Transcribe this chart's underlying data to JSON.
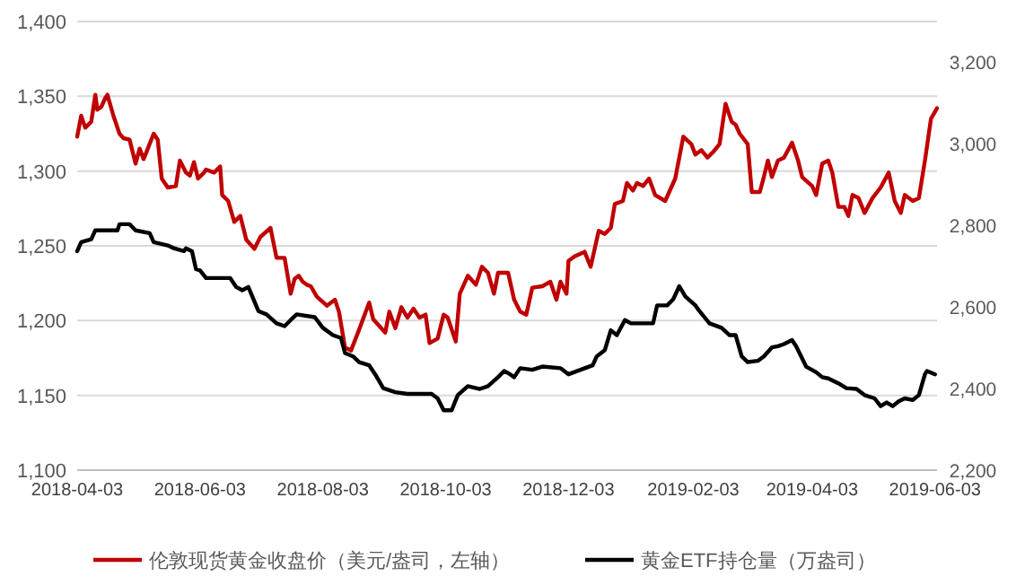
{
  "chart_data": {
    "type": "line",
    "grid": "y",
    "legend": "bottom",
    "marker": "none",
    "line_style": "solid",
    "xlim": [
      "2018-04-03",
      "2019-06-04"
    ],
    "xticks": [
      "2018-04-03",
      "2018-06-03",
      "2018-08-03",
      "2018-10-03",
      "2018-12-03",
      "2019-02-03",
      "2019-04-03",
      "2019-06-03"
    ],
    "ylim": [
      1100,
      1400
    ],
    "yticks": [
      {
        "value": 1100,
        "label": "1,100"
      },
      {
        "value": 1150,
        "label": "1,150"
      },
      {
        "value": 1200,
        "label": "1,200"
      },
      {
        "value": 1250,
        "label": "1,250"
      },
      {
        "value": 1300,
        "label": "1,300"
      },
      {
        "value": 1350,
        "label": "1,350"
      },
      {
        "value": 1400,
        "label": "1,400"
      }
    ],
    "y2lim": [
      2200,
      3300
    ],
    "y2ticks": [
      {
        "value": 2200,
        "label": "2,200"
      },
      {
        "value": 2400,
        "label": "2,400"
      },
      {
        "value": 2600,
        "label": "2,600"
      },
      {
        "value": 2800,
        "label": "2,800"
      },
      {
        "value": 3000,
        "label": "3,000"
      },
      {
        "value": 3200,
        "label": "3,200"
      }
    ],
    "series": [
      {
        "name": "伦敦现货黄金收盘价（美元/盎司，左轴）",
        "color": "#c00000",
        "x": [
          "2018-04-03",
          "2018-04-05",
          "2018-04-07",
          "2018-04-10",
          "2018-04-12",
          "2018-04-13",
          "2018-04-15",
          "2018-04-17",
          "2018-04-18",
          "2018-04-21",
          "2018-04-24",
          "2018-04-26",
          "2018-04-29",
          "2018-05-02",
          "2018-05-04",
          "2018-05-06",
          "2018-05-11",
          "2018-05-13",
          "2018-05-15",
          "2018-05-18",
          "2018-05-22",
          "2018-05-24",
          "2018-05-27",
          "2018-05-29",
          "2018-05-31",
          "2018-06-02",
          "2018-06-05",
          "2018-06-06",
          "2018-06-10",
          "2018-06-13",
          "2018-06-14",
          "2018-06-17",
          "2018-06-20",
          "2018-06-23",
          "2018-06-26",
          "2018-06-30",
          "2018-07-03",
          "2018-07-08",
          "2018-07-11",
          "2018-07-15",
          "2018-07-18",
          "2018-07-20",
          "2018-07-22",
          "2018-07-24",
          "2018-07-26",
          "2018-07-28",
          "2018-07-31",
          "2018-08-05",
          "2018-08-09",
          "2018-08-11",
          "2018-08-14",
          "2018-08-17",
          "2018-08-21",
          "2018-08-26",
          "2018-08-28",
          "2018-09-01",
          "2018-09-03",
          "2018-09-05",
          "2018-09-08",
          "2018-09-11",
          "2018-09-14",
          "2018-09-17",
          "2018-09-20",
          "2018-09-23",
          "2018-09-25",
          "2018-09-29",
          "2018-10-02",
          "2018-10-04",
          "2018-10-08",
          "2018-10-10",
          "2018-10-14",
          "2018-10-18",
          "2018-10-21",
          "2018-10-24",
          "2018-10-27",
          "2018-10-29",
          "2018-11-03",
          "2018-11-06",
          "2018-11-09",
          "2018-11-12",
          "2018-11-15",
          "2018-11-20",
          "2018-11-24",
          "2018-11-27",
          "2018-11-29",
          "2018-12-02",
          "2018-12-03",
          "2018-12-06",
          "2018-12-11",
          "2018-12-14",
          "2018-12-18",
          "2018-12-21",
          "2018-12-24",
          "2018-12-26",
          "2018-12-30",
          "2019-01-01",
          "2019-01-04",
          "2019-01-06",
          "2019-01-09",
          "2019-01-12",
          "2019-01-15",
          "2019-01-20",
          "2019-01-25",
          "2019-01-29",
          "2019-02-02",
          "2019-02-04",
          "2019-02-07",
          "2019-02-10",
          "2019-02-13",
          "2019-02-16",
          "2019-02-19",
          "2019-02-22",
          "2019-02-24",
          "2019-02-26",
          "2019-03-02",
          "2019-03-04",
          "2019-03-08",
          "2019-03-10",
          "2019-03-12",
          "2019-03-14",
          "2019-03-17",
          "2019-03-20",
          "2019-03-24",
          "2019-03-27",
          "2019-03-29",
          "2019-04-03",
          "2019-04-05",
          "2019-04-08",
          "2019-04-11",
          "2019-04-13",
          "2019-04-16",
          "2019-04-19",
          "2019-04-21",
          "2019-04-23",
          "2019-04-26",
          "2019-04-29",
          "2019-05-03",
          "2019-05-07",
          "2019-05-11",
          "2019-05-14",
          "2019-05-17",
          "2019-05-19",
          "2019-05-23",
          "2019-05-26",
          "2019-05-29",
          "2019-06-01",
          "2019-06-04"
        ],
        "values": [
          1323,
          1337,
          1329,
          1333,
          1351,
          1341,
          1343,
          1349,
          1351,
          1337,
          1325,
          1322,
          1321,
          1305,
          1315,
          1308,
          1325,
          1321,
          1295,
          1289,
          1290,
          1307,
          1299,
          1297,
          1306,
          1295,
          1299,
          1301,
          1299,
          1303,
          1284,
          1280,
          1266,
          1270,
          1254,
          1248,
          1256,
          1262,
          1242,
          1242,
          1218,
          1228,
          1230,
          1226,
          1224,
          1223,
          1216,
          1210,
          1214,
          1206,
          1182,
          1180,
          1194,
          1212,
          1201,
          1195,
          1192,
          1206,
          1195,
          1209,
          1202,
          1208,
          1202,
          1204,
          1185,
          1188,
          1204,
          1202,
          1186,
          1218,
          1230,
          1224,
          1236,
          1232,
          1218,
          1232,
          1232,
          1214,
          1206,
          1204,
          1222,
          1223,
          1226,
          1214,
          1226,
          1218,
          1240,
          1243,
          1246,
          1236,
          1260,
          1258,
          1262,
          1278,
          1280,
          1292,
          1287,
          1292,
          1290,
          1295,
          1284,
          1280,
          1295,
          1323,
          1318,
          1311,
          1314,
          1309,
          1313,
          1318,
          1345,
          1333,
          1331,
          1325,
          1318,
          1286,
          1286,
          1296,
          1307,
          1296,
          1307,
          1309,
          1319,
          1307,
          1296,
          1290,
          1284,
          1305,
          1307,
          1299,
          1276,
          1276,
          1270,
          1284,
          1282,
          1272,
          1282,
          1289,
          1299,
          1280,
          1272,
          1284,
          1280,
          1282,
          1307,
          1335,
          1342
        ]
      },
      {
        "name": "黄金ETF持仓量（万盎司）",
        "color": "#000000",
        "axis": "y2",
        "x": [
          "2018-04-03",
          "2018-04-05",
          "2018-04-10",
          "2018-04-12",
          "2018-04-23",
          "2018-04-24",
          "2018-04-29",
          "2018-05-02",
          "2018-05-09",
          "2018-05-11",
          "2018-05-18",
          "2018-05-21",
          "2018-05-26",
          "2018-05-27",
          "2018-05-30",
          "2018-06-01",
          "2018-06-03",
          "2018-06-06",
          "2018-06-18",
          "2018-06-21",
          "2018-06-24",
          "2018-06-27",
          "2018-07-02",
          "2018-07-06",
          "2018-07-11",
          "2018-07-15",
          "2018-07-18",
          "2018-07-21",
          "2018-07-30",
          "2018-08-03",
          "2018-08-08",
          "2018-08-12",
          "2018-08-14",
          "2018-08-18",
          "2018-08-21",
          "2018-08-26",
          "2018-08-29",
          "2018-09-02",
          "2018-09-08",
          "2018-09-14",
          "2018-09-26",
          "2018-09-29",
          "2018-10-02",
          "2018-10-06",
          "2018-10-09",
          "2018-10-14",
          "2018-10-20",
          "2018-10-24",
          "2018-10-29",
          "2018-11-01",
          "2018-11-04",
          "2018-11-06",
          "2018-11-09",
          "2018-11-15",
          "2018-11-20",
          "2018-11-29",
          "2018-12-03",
          "2018-12-09",
          "2018-12-15",
          "2018-12-17",
          "2018-12-21",
          "2018-12-24",
          "2018-12-27",
          "2018-12-31",
          "2019-01-03",
          "2019-01-14",
          "2019-01-16",
          "2019-01-21",
          "2019-01-24",
          "2019-01-27",
          "2019-01-30",
          "2019-02-04",
          "2019-02-06",
          "2019-02-11",
          "2019-02-17",
          "2019-02-21",
          "2019-02-24",
          "2019-02-27",
          "2019-03-02",
          "2019-03-07",
          "2019-03-10",
          "2019-03-14",
          "2019-03-17",
          "2019-03-20",
          "2019-03-24",
          "2019-03-26",
          "2019-03-31",
          "2019-04-05",
          "2019-04-08",
          "2019-04-11",
          "2019-04-16",
          "2019-04-20",
          "2019-04-25",
          "2019-04-29",
          "2019-05-04",
          "2019-05-07",
          "2019-05-10",
          "2019-05-13",
          "2019-05-16",
          "2019-05-19",
          "2019-05-23",
          "2019-05-26",
          "2019-05-29",
          "2019-05-30",
          "2019-06-03"
        ],
        "values": [
          2737,
          2759,
          2766,
          2788,
          2788,
          2803,
          2803,
          2788,
          2781,
          2759,
          2751,
          2744,
          2737,
          2744,
          2737,
          2693,
          2690,
          2671,
          2671,
          2649,
          2641,
          2649,
          2590,
          2582,
          2560,
          2553,
          2568,
          2582,
          2575,
          2549,
          2531,
          2524,
          2487,
          2479,
          2465,
          2457,
          2435,
          2401,
          2391,
          2387,
          2387,
          2376,
          2347,
          2347,
          2384,
          2406,
          2399,
          2406,
          2428,
          2443,
          2435,
          2428,
          2450,
          2446,
          2454,
          2450,
          2435,
          2446,
          2457,
          2479,
          2494,
          2543,
          2531,
          2568,
          2560,
          2560,
          2604,
          2604,
          2619,
          2651,
          2626,
          2604,
          2590,
          2560,
          2549,
          2531,
          2531,
          2479,
          2465,
          2468,
          2479,
          2501,
          2504,
          2509,
          2519,
          2504,
          2454,
          2440,
          2428,
          2425,
          2413,
          2401,
          2399,
          2384,
          2376,
          2357,
          2366,
          2357,
          2369,
          2376,
          2372,
          2384,
          2435,
          2443,
          2435
        ]
      }
    ]
  }
}
